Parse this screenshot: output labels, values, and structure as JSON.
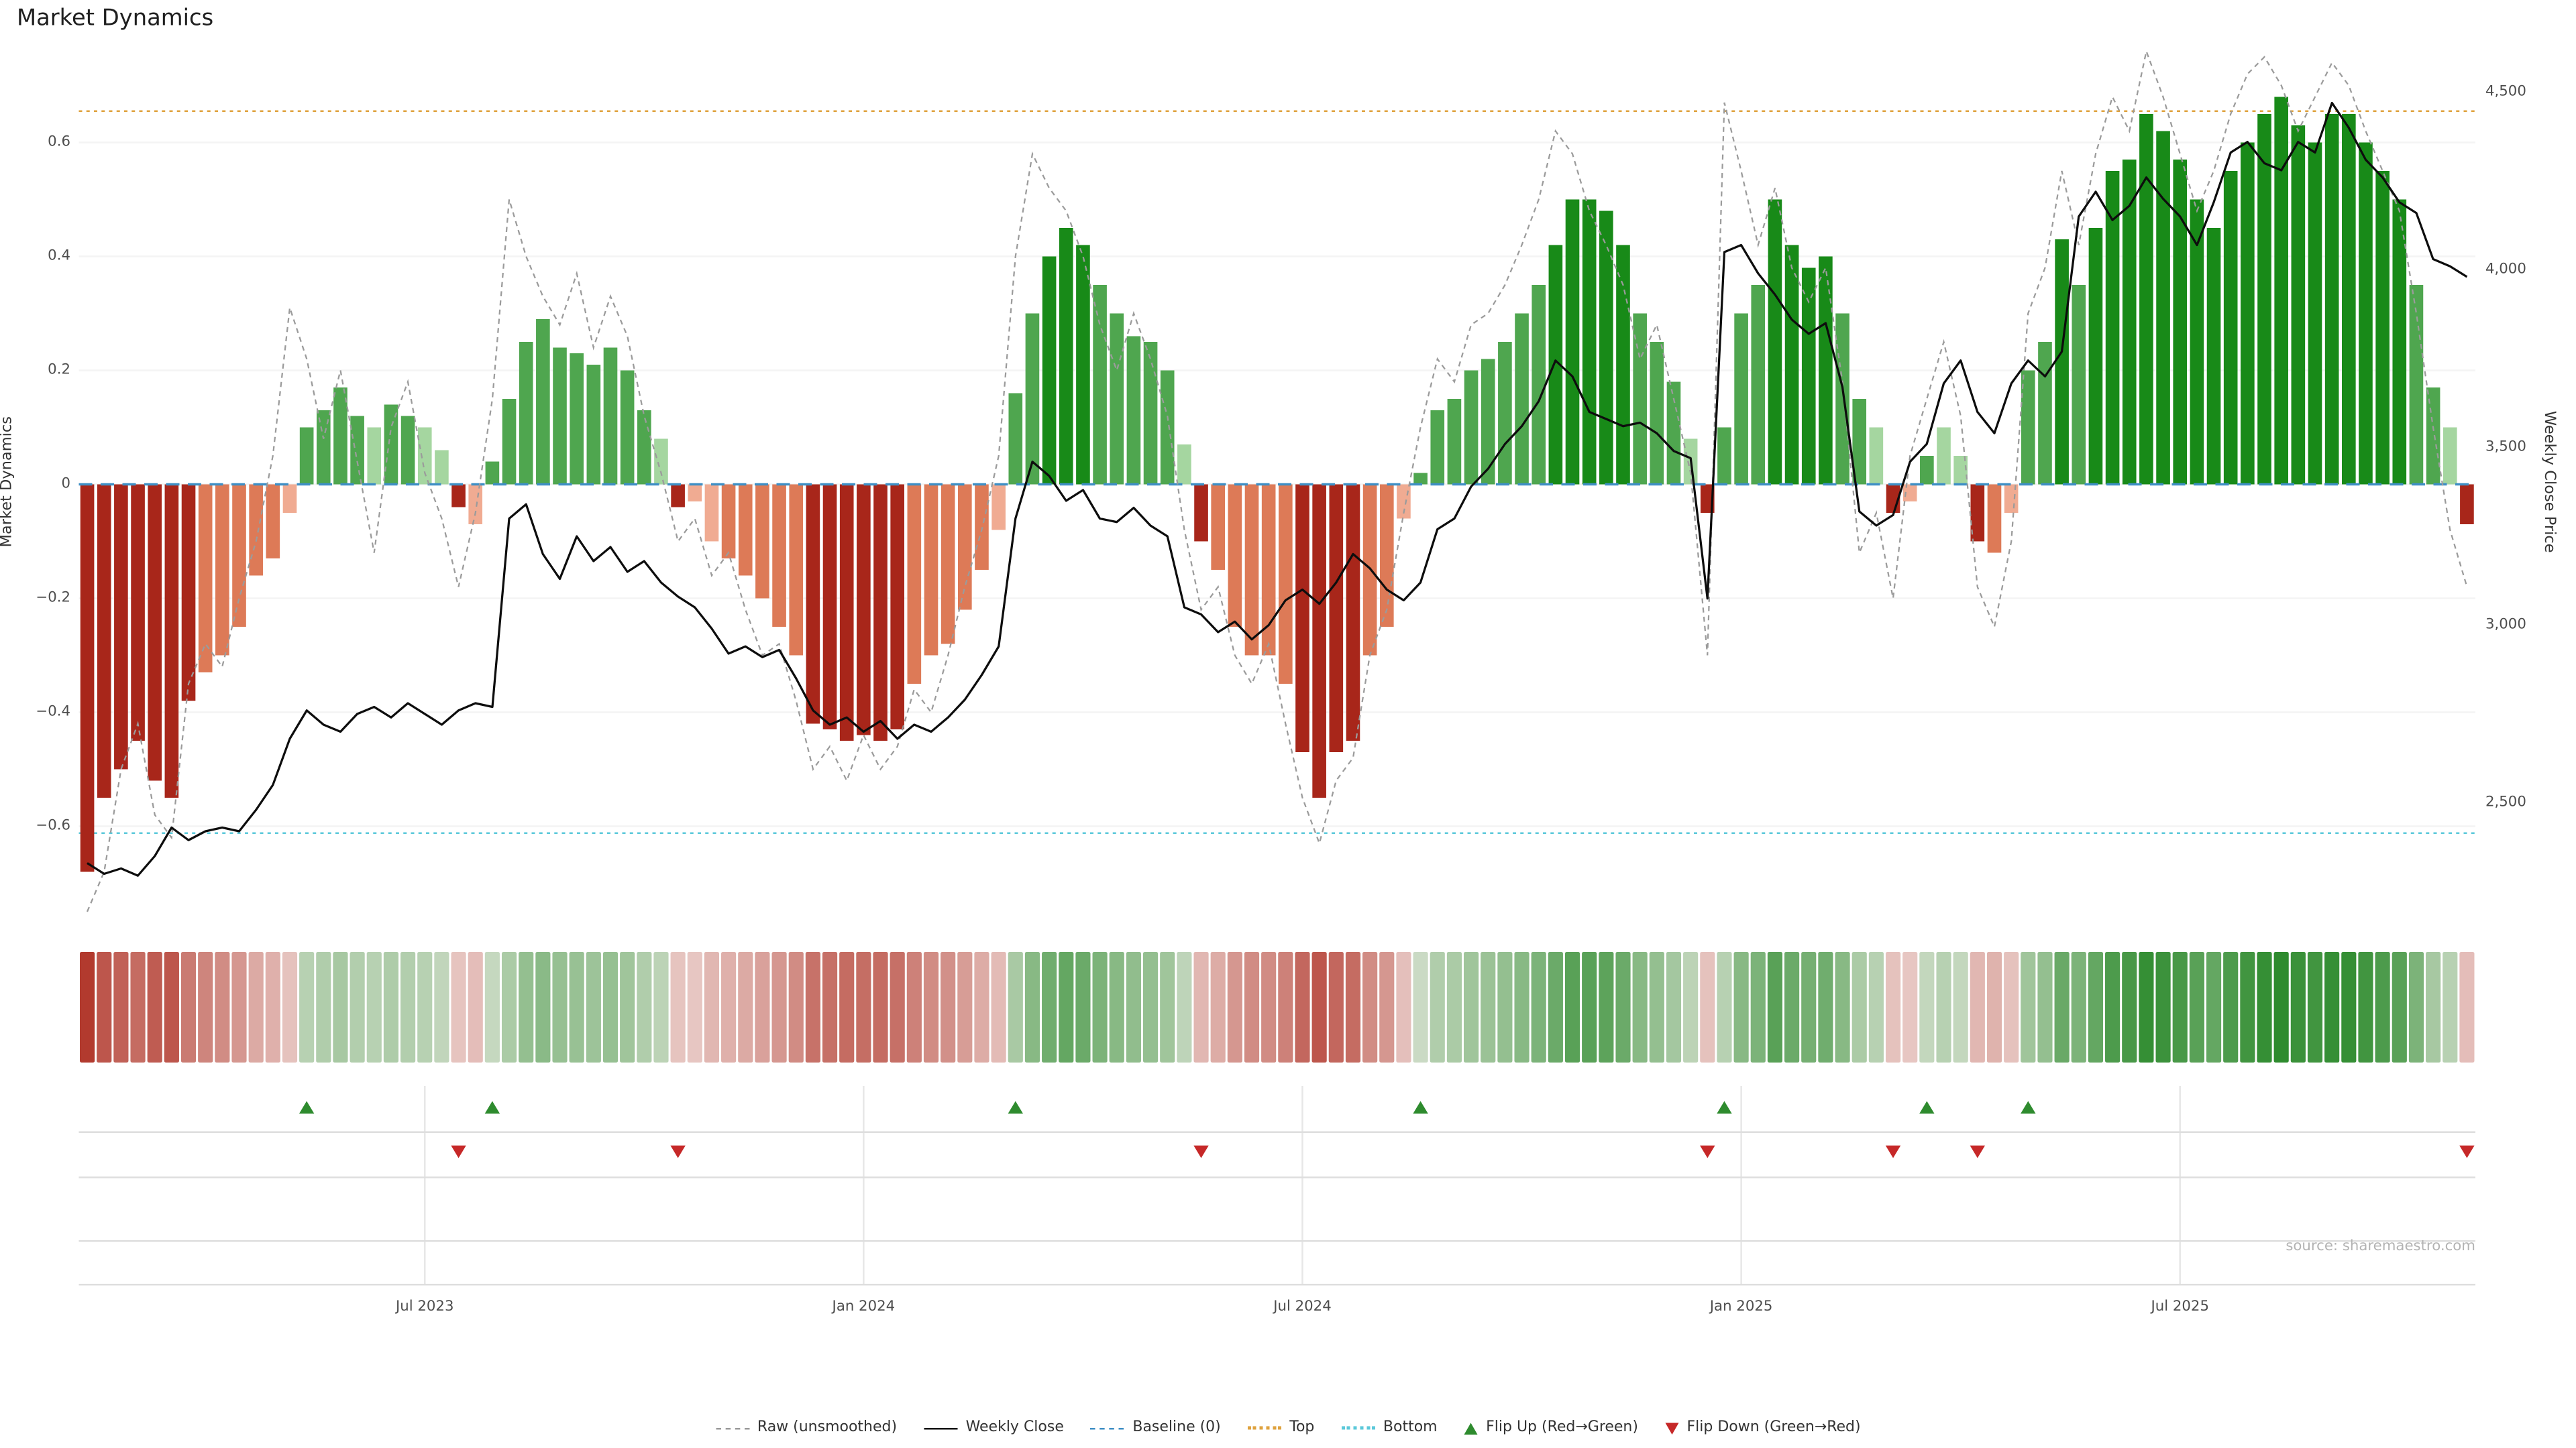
{
  "title": "Market Dynamics",
  "source": "source: sharemaestro.com",
  "axes": {
    "left_label": "Market Dynamics",
    "right_label": "Weekly Close Price",
    "left_ticks": [
      "0.6",
      "0.4",
      "0.2",
      "0",
      "−0.2",
      "−0.4",
      "−0.6"
    ],
    "left_tick_values": [
      0.6,
      0.4,
      0.2,
      0,
      -0.2,
      -0.4,
      -0.6
    ],
    "right_ticks": [
      "4,500",
      "4,000",
      "3,500",
      "3,000",
      "2,500"
    ],
    "right_tick_values": [
      4500,
      4000,
      3500,
      3000,
      2500
    ],
    "x_ticks": [
      {
        "label": "Jul 2023",
        "week": 20
      },
      {
        "label": "Jan 2024",
        "week": 46
      },
      {
        "label": "Jul 2024",
        "week": 72
      },
      {
        "label": "Jan 2025",
        "week": 98
      },
      {
        "label": "Jul 2025",
        "week": 124
      }
    ]
  },
  "legend": [
    {
      "label": "Raw (unsmoothed)",
      "icon": "dashed-line",
      "color": "#9b9b9b"
    },
    {
      "label": "Weekly Close",
      "icon": "solid-line",
      "color": "#0d0d0d"
    },
    {
      "label": "Baseline (0)",
      "icon": "dashed-line",
      "color": "#3f8fc5"
    },
    {
      "label": "Top",
      "icon": "dotted-line",
      "color": "#dfa23e"
    },
    {
      "label": "Bottom",
      "icon": "dotted-line",
      "color": "#5bc8da"
    },
    {
      "label": "Flip Up (Red→Green)",
      "icon": "triangle-up",
      "color": "#2e8b2e"
    },
    {
      "label": "Flip Down (Green→Red)",
      "icon": "triangle-down",
      "color": "#c62828"
    }
  ],
  "chart_data": {
    "type": "bar+line",
    "x_unit": "week-index",
    "weeks": 142,
    "oscillator": {
      "name": "Market Dynamics (smoothed)",
      "ylim": [
        -0.72,
        0.72
      ],
      "baseline": 0,
      "top": 0.655,
      "bottom": -0.612,
      "values": [
        -0.68,
        -0.55,
        -0.5,
        -0.45,
        -0.52,
        -0.55,
        -0.38,
        -0.33,
        -0.3,
        -0.25,
        -0.16,
        -0.13,
        -0.05,
        0.1,
        0.13,
        0.17,
        0.12,
        0.1,
        0.14,
        0.12,
        0.1,
        0.06,
        -0.04,
        -0.07,
        0.04,
        0.15,
        0.25,
        0.29,
        0.24,
        0.23,
        0.21,
        0.24,
        0.2,
        0.13,
        0.08,
        -0.04,
        -0.03,
        -0.1,
        -0.13,
        -0.16,
        -0.2,
        -0.25,
        -0.3,
        -0.42,
        -0.43,
        -0.45,
        -0.44,
        -0.45,
        -0.43,
        -0.35,
        -0.3,
        -0.28,
        -0.22,
        -0.15,
        -0.08,
        0.16,
        0.3,
        0.4,
        0.45,
        0.42,
        0.35,
        0.3,
        0.26,
        0.25,
        0.2,
        0.07,
        -0.1,
        -0.15,
        -0.25,
        -0.3,
        -0.3,
        -0.35,
        -0.47,
        -0.55,
        -0.47,
        -0.45,
        -0.3,
        -0.25,
        -0.06,
        0.02,
        0.13,
        0.15,
        0.2,
        0.22,
        0.25,
        0.3,
        0.35,
        0.42,
        0.5,
        0.5,
        0.48,
        0.42,
        0.3,
        0.25,
        0.18,
        0.08,
        -0.05,
        0.1,
        0.3,
        0.35,
        0.5,
        0.42,
        0.38,
        0.4,
        0.3,
        0.15,
        0.1,
        -0.05,
        -0.03,
        0.05,
        0.1,
        0.05,
        -0.1,
        -0.12,
        -0.05,
        0.2,
        0.25,
        0.43,
        0.35,
        0.45,
        0.55,
        0.57,
        0.65,
        0.62,
        0.57,
        0.5,
        0.45,
        0.55,
        0.6,
        0.65,
        0.68,
        0.63,
        0.6,
        0.65,
        0.65,
        0.6,
        0.55,
        0.5,
        0.35,
        0.17,
        0.1,
        -0.07
      ]
    },
    "raw_values": [
      -0.75,
      -0.68,
      -0.5,
      -0.42,
      -0.58,
      -0.62,
      -0.35,
      -0.28,
      -0.32,
      -0.2,
      -0.1,
      0.05,
      0.31,
      0.22,
      0.08,
      0.2,
      0.04,
      -0.12,
      0.1,
      0.18,
      0.02,
      -0.06,
      -0.18,
      -0.05,
      0.15,
      0.5,
      0.4,
      0.33,
      0.28,
      0.37,
      0.24,
      0.33,
      0.26,
      0.12,
      0.02,
      -0.1,
      -0.06,
      -0.16,
      -0.12,
      -0.22,
      -0.3,
      -0.28,
      -0.38,
      -0.5,
      -0.46,
      -0.52,
      -0.44,
      -0.5,
      -0.46,
      -0.36,
      -0.4,
      -0.3,
      -0.18,
      -0.08,
      0.05,
      0.4,
      0.58,
      0.52,
      0.48,
      0.4,
      0.28,
      0.2,
      0.3,
      0.22,
      0.12,
      -0.08,
      -0.22,
      -0.18,
      -0.3,
      -0.35,
      -0.28,
      -0.42,
      -0.55,
      -0.63,
      -0.52,
      -0.48,
      -0.3,
      -0.22,
      -0.05,
      0.1,
      0.22,
      0.18,
      0.28,
      0.3,
      0.35,
      0.42,
      0.5,
      0.62,
      0.58,
      0.48,
      0.42,
      0.35,
      0.22,
      0.28,
      0.15,
      0.02,
      -0.3,
      0.67,
      0.55,
      0.42,
      0.52,
      0.38,
      0.32,
      0.38,
      0.18,
      -0.12,
      -0.05,
      -0.2,
      0.05,
      0.15,
      0.25,
      0.12,
      -0.18,
      -0.25,
      -0.1,
      0.3,
      0.38,
      0.55,
      0.42,
      0.58,
      0.68,
      0.62,
      0.76,
      0.68,
      0.58,
      0.48,
      0.55,
      0.65,
      0.72,
      0.75,
      0.7,
      0.62,
      0.68,
      0.74,
      0.7,
      0.62,
      0.55,
      0.48,
      0.3,
      0.1,
      -0.08,
      -0.18
    ],
    "weekly_close": [
      2330,
      2300,
      2315,
      2295,
      2350,
      2430,
      2395,
      2420,
      2430,
      2420,
      2480,
      2550,
      2680,
      2760,
      2720,
      2700,
      2750,
      2770,
      2740,
      2780,
      2750,
      2720,
      2760,
      2780,
      2770,
      3300,
      3340,
      3200,
      3130,
      3250,
      3180,
      3220,
      3150,
      3180,
      3120,
      3080,
      3050,
      2990,
      2920,
      2940,
      2910,
      2930,
      2850,
      2760,
      2720,
      2740,
      2700,
      2730,
      2680,
      2720,
      2700,
      2740,
      2790,
      2860,
      2940,
      3300,
      3460,
      3420,
      3350,
      3380,
      3300,
      3290,
      3330,
      3280,
      3250,
      3050,
      3030,
      2980,
      3010,
      2960,
      3000,
      3070,
      3100,
      3060,
      3120,
      3200,
      3160,
      3100,
      3070,
      3120,
      3270,
      3300,
      3390,
      3440,
      3510,
      3560,
      3630,
      3745,
      3700,
      3600,
      3580,
      3560,
      3570,
      3540,
      3490,
      3470,
      3075,
      4050,
      4070,
      3990,
      3930,
      3860,
      3820,
      3850,
      3670,
      3320,
      3280,
      3310,
      3460,
      3510,
      3680,
      3745,
      3600,
      3540,
      3680,
      3745,
      3700,
      3770,
      4150,
      4220,
      4140,
      4180,
      4260,
      4200,
      4150,
      4070,
      4190,
      4330,
      4360,
      4300,
      4280,
      4360,
      4330,
      4470,
      4400,
      4310,
      4260,
      4190,
      4160,
      4030,
      4010,
      3980
    ],
    "flip_up_weeks": [
      13,
      24,
      55,
      79,
      97,
      109,
      115
    ],
    "flip_down_weeks": [
      22,
      35,
      66,
      96,
      107,
      112,
      141
    ],
    "colors": {
      "green_dark": "#188a18",
      "green_mid": "#4fa64f",
      "green_light": "#a5d6a0",
      "red_dark": "#a8261a",
      "red_mid": "#dd7a57",
      "red_light": "#f0ab92",
      "heat_green": "#2e8b2e",
      "heat_red": "#b23a2e",
      "heat_neutral": "#f7f1ef",
      "line_close": "#0d0d0d",
      "line_raw": "#9b9b9b",
      "baseline": "#3f8fc5",
      "top_line": "#dfa23e",
      "bottom_line": "#5bc8da",
      "flip_up": "#2e8b2e",
      "flip_down": "#c62828"
    },
    "legend_position": "bottom-center",
    "grid": "faint"
  }
}
